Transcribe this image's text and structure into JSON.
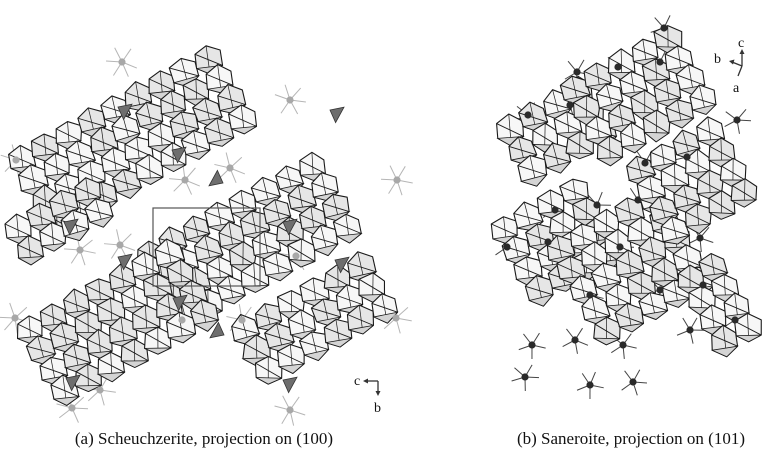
{
  "panels": [
    {
      "caption": "(a) Scheuchzerite, projection on (100)",
      "axes": {
        "horizontal": "c",
        "vertical": "b"
      }
    },
    {
      "caption": "(b) Saneroite, projection on (101)",
      "axes": {
        "horizontal": "b",
        "vertical": "c",
        "depth": "a"
      }
    }
  ],
  "colors": {
    "polyhedron_fill": "#e6e6e6",
    "polyhedron_stroke": "#1a1a1a",
    "tetrahedron_fill": "#6e6e6e",
    "cation_left": "#a8a8a8",
    "cation_right": "#2a2a2a",
    "bond_left": "#b5b5b5",
    "bond_right": "#444444",
    "unit_cell": "#555555"
  }
}
